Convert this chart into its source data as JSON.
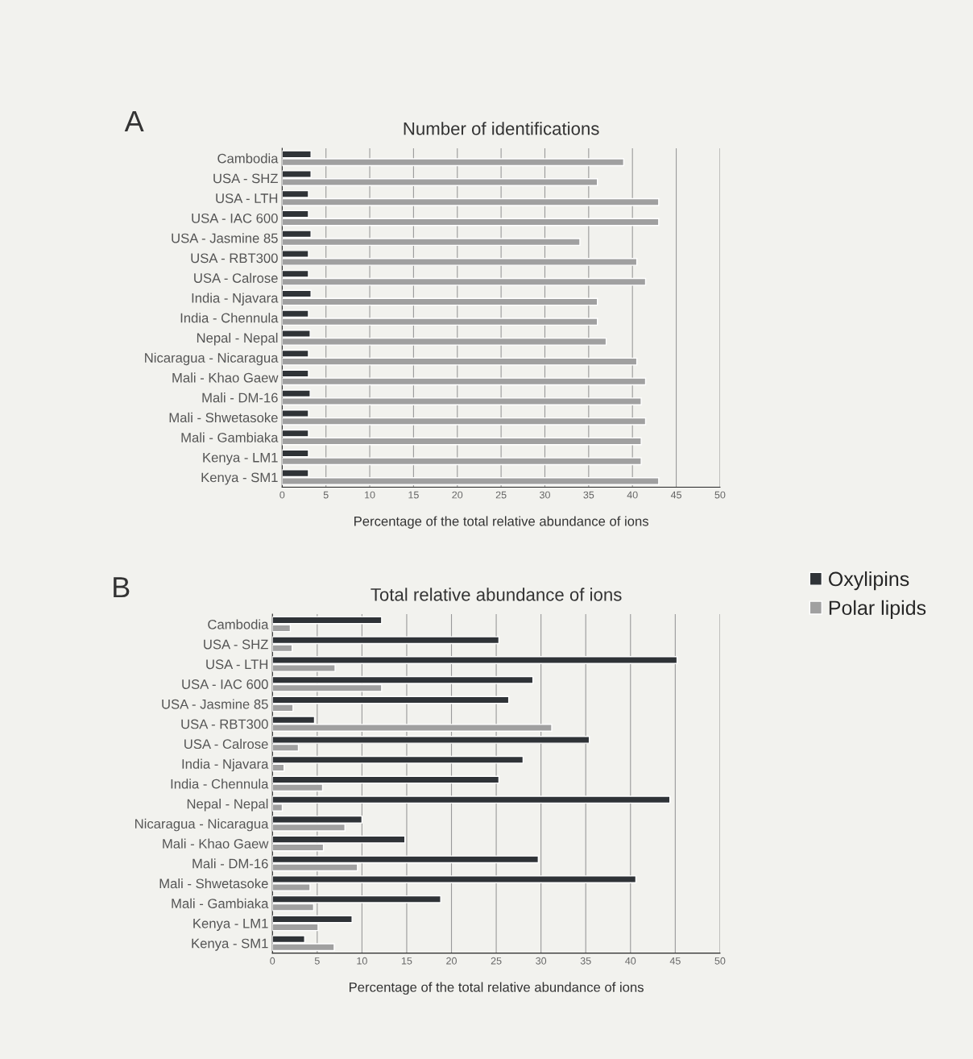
{
  "chart_data": [
    {
      "type": "bar",
      "orientation": "horizontal",
      "title": "Number of identifications",
      "xlabel": "Percentage of the total relative abundance of ions",
      "annotations": [
        "A"
      ],
      "categories": [
        "Cambodia",
        "USA - SHZ",
        "USA - LTH",
        "USA - IAC 600",
        "USA - Jasmine 85",
        "USA - RBT300",
        "USA - Calrose",
        "India - Njavara",
        "India - Chennula",
        "Nepal - Nepal",
        "Nicaragua - Nicaragua",
        "Mali - Khao Gaew",
        "Mali - DM-16",
        "Mali - Shwetasoke",
        "Mali - Gambiaka",
        "Kenya - LM1",
        "Kenya - SM1"
      ],
      "series": [
        {
          "color": "#2f3337",
          "values": [
            3.3,
            3.3,
            3,
            3,
            3.3,
            3,
            3,
            3.3,
            3,
            3.2,
            3,
            3,
            3.2,
            3,
            3,
            3,
            3
          ]
        },
        {
          "color": "#a0a0a0",
          "values": [
            39,
            36,
            43,
            43,
            34,
            40.5,
            41.5,
            36,
            36,
            37,
            40.5,
            41.5,
            41,
            41.5,
            41,
            41,
            43
          ]
        }
      ],
      "xlim": [
        0,
        50
      ],
      "xticks": [
        0,
        5,
        10,
        15,
        20,
        25,
        30,
        35,
        40,
        45,
        50
      ],
      "grid": "x",
      "legend": false
    },
    {
      "type": "bar",
      "orientation": "horizontal",
      "title": "Total relative abundance of ions",
      "xlabel": "Percentage of the total relative abundance of ions",
      "annotations": [
        "B"
      ],
      "categories": [
        "Cambodia",
        "USA - SHZ",
        "USA - LTH",
        "USA - IAC 600",
        "USA - Jasmine 85",
        "USA - RBT300",
        "USA - Calrose",
        "India - Njavara",
        "India - Chennula",
        "Nepal - Nepal",
        "Nicaragua - Nicaragua",
        "Mali - Khao Gaew",
        "Mali - DM-16",
        "Mali - Shwetasoke",
        "Mali - Gambiaka",
        "Kenya - LM1",
        "Kenya - SM1"
      ],
      "series": [
        {
          "name": "Oxylipins",
          "color": "#2f3337",
          "values": [
            12.2,
            25.3,
            45.2,
            29.1,
            26.4,
            4.7,
            35.4,
            28,
            25.3,
            44.4,
            10,
            14.8,
            29.7,
            40.6,
            18.8,
            8.9,
            3.6
          ]
        },
        {
          "name": "Polar lipids",
          "color": "#a0a0a0",
          "values": [
            2,
            2.2,
            7,
            12.2,
            2.3,
            31.2,
            2.9,
            1.3,
            5.6,
            1.1,
            8.1,
            5.7,
            9.5,
            4.2,
            4.6,
            5.1,
            6.9
          ]
        }
      ],
      "xlim": [
        0,
        50
      ],
      "xticks": [
        0,
        5,
        10,
        15,
        20,
        25,
        30,
        35,
        40,
        45,
        50
      ],
      "grid": "x",
      "legend": "top right"
    }
  ]
}
